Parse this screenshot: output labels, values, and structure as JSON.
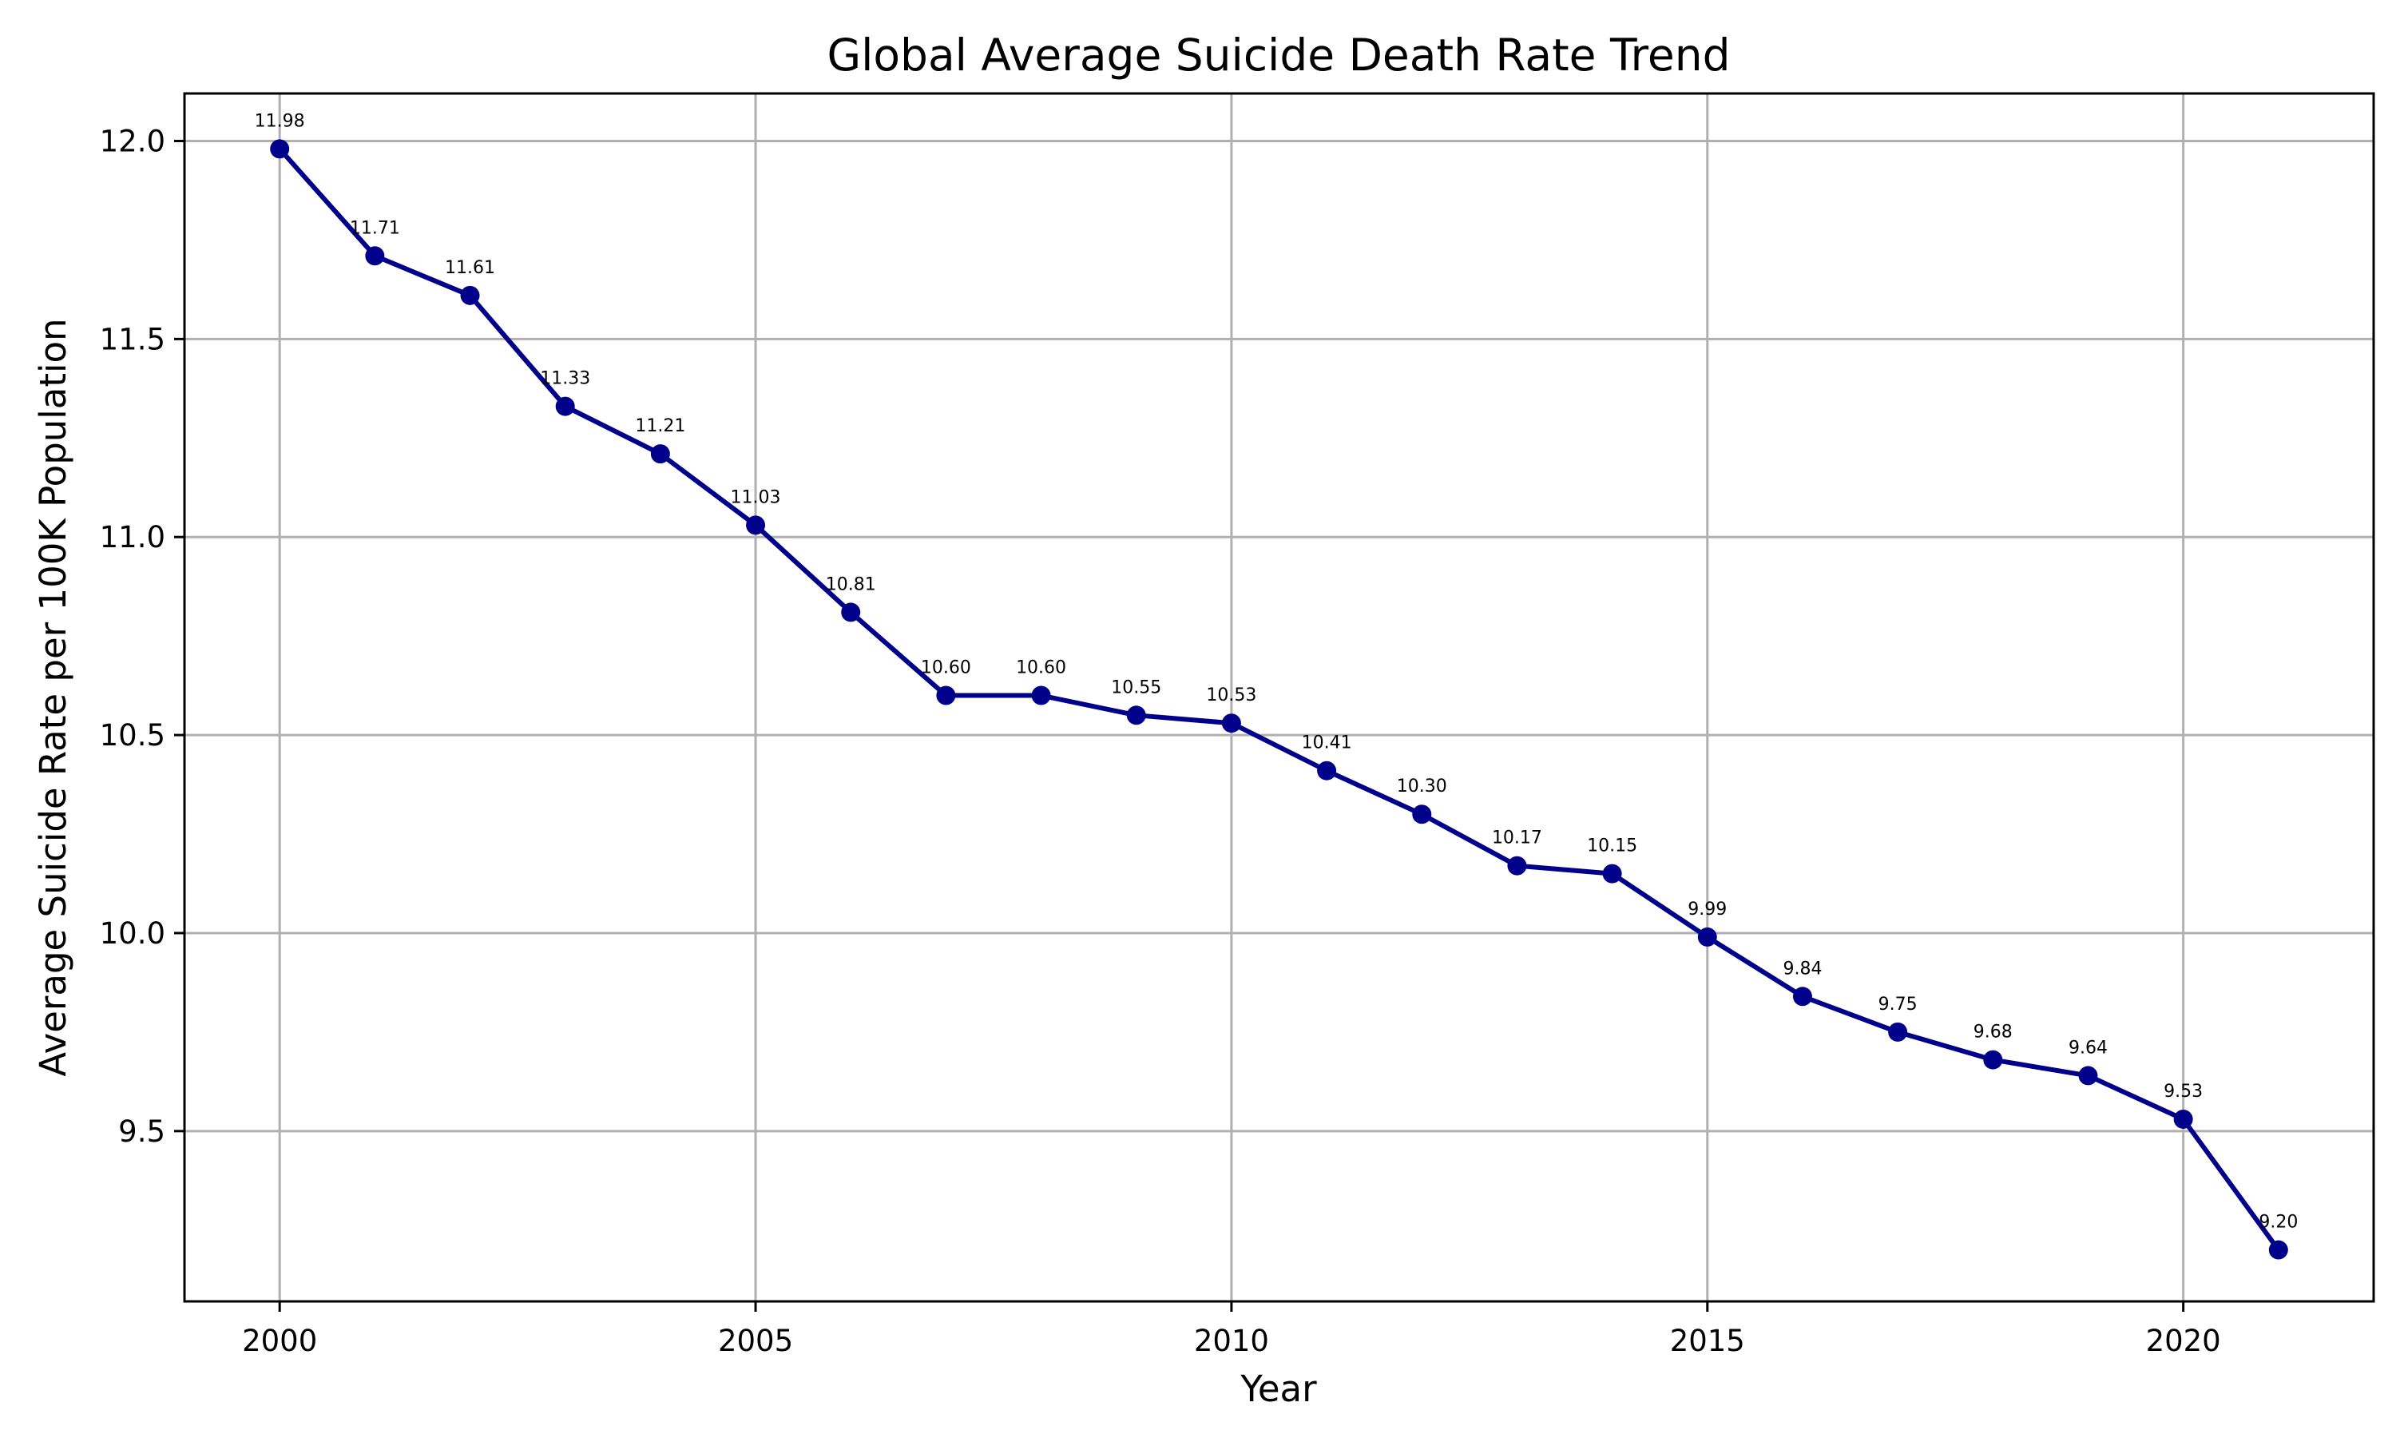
{
  "chart_data": {
    "type": "line",
    "title": "Global Average Suicide Death Rate Trend",
    "xlabel": "Year",
    "ylabel": "Average Suicide Rate per 100K Population",
    "xlim": [
      1999,
      2022
    ],
    "ylim": [
      9.07,
      12.12
    ],
    "x_ticks": [
      2000,
      2005,
      2010,
      2015,
      2020
    ],
    "y_ticks": [
      "9.5",
      "10.0",
      "10.5",
      "11.0",
      "11.5",
      "12.0"
    ],
    "grid": true,
    "line_color": "#00008b",
    "x": [
      2000,
      2001,
      2002,
      2003,
      2004,
      2005,
      2006,
      2007,
      2008,
      2009,
      2010,
      2011,
      2012,
      2013,
      2014,
      2015,
      2016,
      2017,
      2018,
      2019,
      2020,
      2021
    ],
    "values": [
      11.98,
      11.71,
      11.61,
      11.33,
      11.21,
      11.03,
      10.81,
      10.6,
      10.6,
      10.55,
      10.53,
      10.41,
      10.3,
      10.17,
      10.15,
      9.99,
      9.84,
      9.75,
      9.68,
      9.64,
      9.53,
      9.2
    ],
    "labels": [
      "11.98",
      "11.71",
      "11.61",
      "11.33",
      "11.21",
      "11.03",
      "10.81",
      "10.60",
      "10.60",
      "10.55",
      "10.53",
      "10.41",
      "10.30",
      "10.17",
      "10.15",
      "9.99",
      "9.84",
      "9.75",
      "9.68",
      "9.64",
      "9.53",
      "9.20"
    ]
  }
}
